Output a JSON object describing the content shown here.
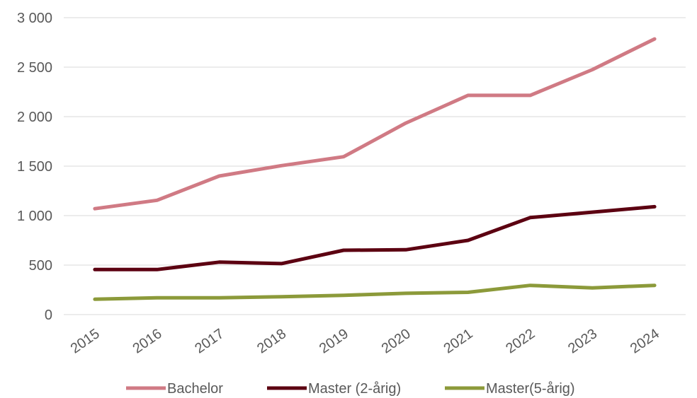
{
  "chart_data": {
    "type": "line",
    "title": "",
    "xlabel": "",
    "ylabel": "",
    "categories": [
      "2015",
      "2016",
      "2017",
      "2018",
      "2019",
      "2020",
      "2021",
      "2022",
      "2023",
      "2024"
    ],
    "ylim": [
      0,
      3000
    ],
    "yticks": [
      0,
      500,
      1000,
      1500,
      2000,
      2500,
      3000
    ],
    "ytick_labels": [
      "0",
      "500",
      "1 000",
      "1 500",
      "2 000",
      "2 500",
      "3 000"
    ],
    "grid": true,
    "legend_position": "bottom",
    "series": [
      {
        "name": "Bachelor",
        "color": "#d07a84",
        "values": [
          1070,
          1155,
          1400,
          1505,
          1595,
          1935,
          2215,
          2215,
          2475,
          2785
        ]
      },
      {
        "name": "Master (2-årig)",
        "color": "#5c0011",
        "values": [
          455,
          455,
          530,
          515,
          650,
          655,
          750,
          980,
          1035,
          1090
        ]
      },
      {
        "name": "Master(5-årig)",
        "color": "#8c9a3a",
        "values": [
          155,
          170,
          170,
          180,
          195,
          215,
          225,
          295,
          270,
          295
        ]
      }
    ]
  }
}
